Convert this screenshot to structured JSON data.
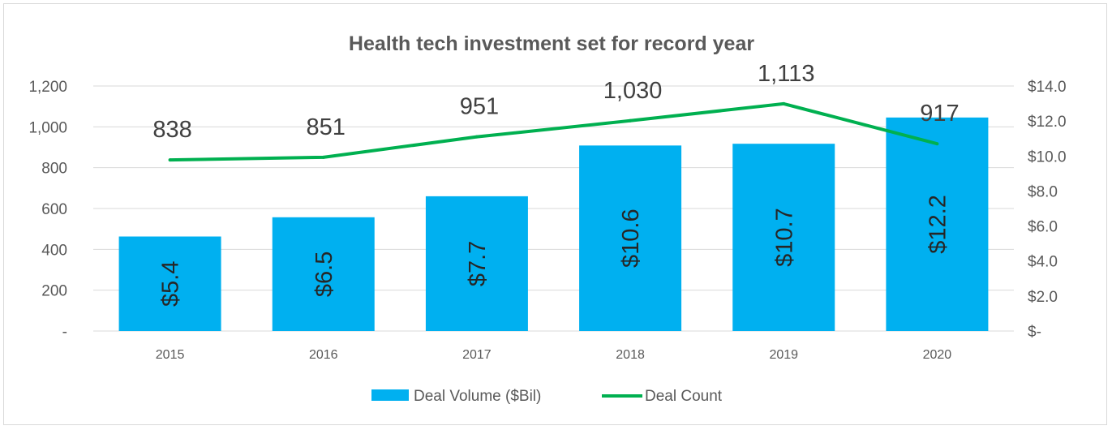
{
  "chart_data": {
    "type": "bar+line",
    "title": "Health tech investment set for record year",
    "categories": [
      "2015",
      "2016",
      "2017",
      "2018",
      "2019",
      "2020"
    ],
    "series": [
      {
        "name": "Deal Volume ($Bil)",
        "type": "bar",
        "axis": "right",
        "values": [
          5.4,
          6.5,
          7.7,
          10.6,
          10.7,
          12.2
        ],
        "labels": [
          "$5.4",
          "$6.5",
          "$7.7",
          "$10.6",
          "$10.7",
          "$12.2"
        ],
        "color": "#00B0F0"
      },
      {
        "name": "Deal Count",
        "type": "line",
        "axis": "left",
        "values": [
          838,
          851,
          951,
          1030,
          1113,
          917
        ],
        "labels": [
          "838",
          "851",
          "951",
          "1,030",
          "1,113",
          "917"
        ],
        "color": "#00B050"
      }
    ],
    "left_axis": {
      "range": [
        0,
        1200
      ],
      "ticks": [
        "-",
        "200",
        "400",
        "600",
        "800",
        "1,000",
        "1,200"
      ]
    },
    "right_axis": {
      "range": [
        0,
        14
      ],
      "ticks": [
        "$-",
        "$2.0",
        "$4.0",
        "$6.0",
        "$8.0",
        "$10.0",
        "$12.0",
        "$14.0"
      ]
    },
    "grid": true,
    "legend": "bottom"
  }
}
